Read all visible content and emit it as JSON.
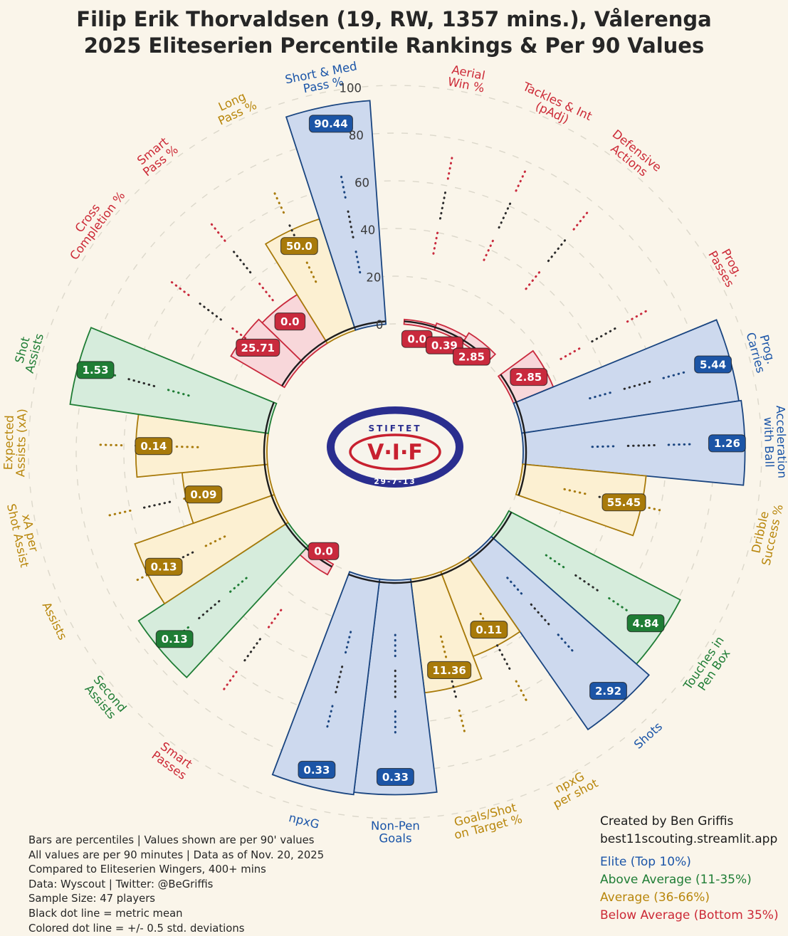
{
  "title": {
    "line1": "Filip Erik Thorvaldsen (19, RW, 1357 mins.), Vålerenga",
    "line2": "2025 Eliteserien Percentile Rankings & Per 90 Values"
  },
  "center_logo": {
    "top_text": "STIFTET",
    "main_text": "V·I·F",
    "bottom_text": "29-7-13"
  },
  "chart_data": {
    "type": "radial-bar-pizza",
    "axis": {
      "min": 0,
      "max": 100,
      "ticks": [
        0,
        20,
        40,
        60,
        80,
        100
      ]
    },
    "legend_note": "Bars are percentiles, value badges are per-90 values",
    "categories": {
      "elite": {
        "label": "Elite (Top 10%)",
        "badge": "#1c55a6",
        "fill": "#cdd9ee",
        "edge": "#1a4580",
        "text": "#1b55a8"
      },
      "above": {
        "label": "Above Average (11-35%)",
        "badge": "#1f7d35",
        "fill": "#d6ecdc",
        "edge": "#1f7d35",
        "text": "#1f7d35"
      },
      "average": {
        "label": "Average (36-66%)",
        "badge": "#a87a0a",
        "fill": "#fcf0d2",
        "edge": "#a87a0a",
        "text": "#b8860b"
      },
      "below": {
        "label": "Below Average (Bottom 35%)",
        "badge": "#c92a3d",
        "fill": "#f8d7da",
        "edge": "#c92a3d",
        "text": "#cc2936"
      }
    },
    "groups": [
      {
        "name": "defending",
        "metrics": [
          {
            "label_lines": [
              "Aerial",
              "Win %"
            ],
            "value": "0.0",
            "percentile": 2,
            "mean": 52,
            "category": "below"
          },
          {
            "label_lines": [
              "Tackles & Int",
              "(pAdj)"
            ],
            "value": "0.39",
            "percentile": 3,
            "mean": 56,
            "category": "below"
          },
          {
            "label_lines": [
              "Defensive",
              "Actions"
            ],
            "value": "2.85",
            "percentile": 5,
            "mean": 55,
            "category": "below"
          }
        ]
      },
      {
        "name": "progression",
        "metrics": [
          {
            "label_lines": [
              "Prog.",
              "Passes"
            ],
            "value": "2.85",
            "percentile": 18,
            "mean": 47,
            "category": "below"
          },
          {
            "label_lines": [
              "Prog.",
              "Carries"
            ],
            "value": "5.44",
            "percentile": 92,
            "mean": 52,
            "category": "elite"
          },
          {
            "label_lines": [
              "Acceleration",
              "with Ball"
            ],
            "value": "1.26",
            "percentile": 93,
            "mean": 50,
            "category": "elite"
          },
          {
            "label_lines": [
              "Dribble",
              "Success %"
            ],
            "value": "55.45",
            "percentile": 52,
            "mean": 40,
            "category": "average"
          }
        ]
      },
      {
        "name": "shooting",
        "metrics": [
          {
            "label_lines": [
              "Touches in",
              "Pen Box"
            ],
            "value": "4.84",
            "percentile": 81,
            "mean": 44,
            "category": "above"
          },
          {
            "label_lines": [
              "Shots"
            ],
            "value": "2.92",
            "percentile": 88,
            "mean": 38,
            "category": "elite"
          },
          {
            "label_lines": [
              "npxG",
              "per shot"
            ],
            "value": "0.11",
            "percentile": 38,
            "mean": 44,
            "category": "average"
          },
          {
            "label_lines": [
              "Goals/Shot",
              "on Target %"
            ],
            "value": "11.36",
            "percentile": 48,
            "mean": 47,
            "category": "average"
          },
          {
            "label_lines": [
              "Non-Pen",
              "Goals"
            ],
            "value": "0.33",
            "percentile": 90,
            "mean": 44,
            "category": "elite"
          },
          {
            "label_lines": [
              "npxG"
            ],
            "value": "0.33",
            "percentile": 91,
            "mean": 45,
            "category": "elite"
          }
        ]
      },
      {
        "name": "creativity",
        "metrics": [
          {
            "label_lines": [
              "Smart",
              "Passes"
            ],
            "value": "0.0",
            "percentile": 5,
            "mean": 49,
            "category": "below"
          },
          {
            "label_lines": [
              "Second",
              "Assists"
            ],
            "value": "0.13",
            "percentile": 75,
            "mean": 49,
            "category": "above"
          },
          {
            "label_lines": [
              "Assists"
            ],
            "value": "0.13",
            "percentile": 62,
            "mean": 47,
            "category": "average"
          },
          {
            "label_lines": [
              "xA per",
              "Shot Assist"
            ],
            "value": "0.09",
            "percentile": 36,
            "mean": 49,
            "category": "average"
          },
          {
            "label_lines": [
              "Expected",
              "Assists (xA)"
            ],
            "value": "0.14",
            "percentile": 55,
            "mean": 50,
            "category": "average"
          },
          {
            "label_lines": [
              "Shot",
              "Assists"
            ],
            "value": "1.53",
            "percentile": 84,
            "mean": 57,
            "category": "above"
          }
        ]
      },
      {
        "name": "passing",
        "metrics": [
          {
            "label_lines": [
              "Cross",
              "Completion %"
            ],
            "value": "25.71",
            "percentile": 26,
            "mean": 44,
            "category": "below"
          },
          {
            "label_lines": [
              "Smart",
              "Pass %"
            ],
            "value": "0.0",
            "percentile": 24,
            "mean": 49,
            "category": "below"
          },
          {
            "label_lines": [
              "Long",
              "Pass %"
            ],
            "value": "50.0",
            "percentile": 49,
            "mean": 46,
            "category": "average"
          },
          {
            "label_lines": [
              "Short & Med",
              "Pass %"
            ],
            "value": "90.44",
            "percentile": 94,
            "mean": 44,
            "category": "elite"
          }
        ]
      }
    ]
  },
  "footer_left": {
    "lines": [
      "Bars are percentiles | Values shown are per 90' values",
      "All values are per 90 minutes | Data as of Nov. 20, 2025",
      "Compared to Eliteserien Wingers, 400+ mins",
      "Data: Wyscout | Twitter: @BeGriffis",
      "Sample Size: 47 players",
      "Black dot line = metric mean",
      "Colored dot line = +/- 0.5 std. deviations"
    ]
  },
  "footer_right": {
    "credit_line1": "Created by Ben Griffis",
    "credit_line2": "best11scouting.streamlit.app"
  }
}
